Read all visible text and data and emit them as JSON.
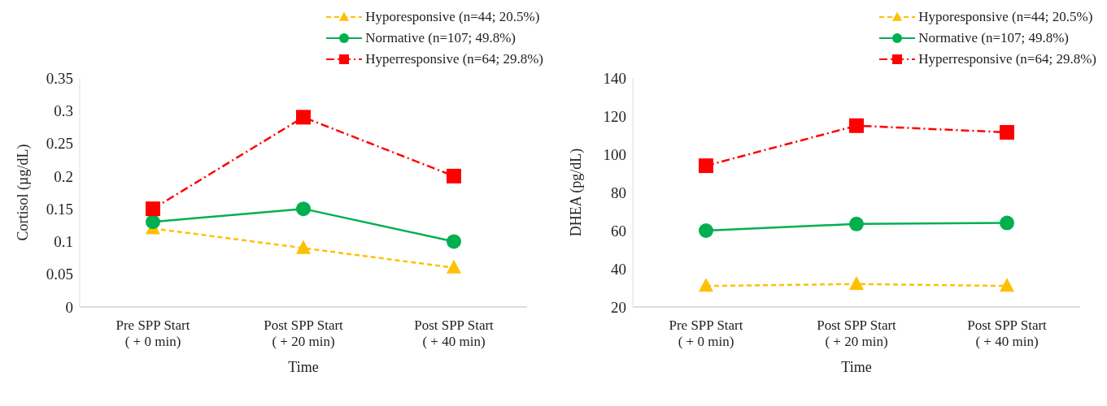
{
  "chart_data": [
    {
      "type": "line",
      "xlabel": "Time",
      "ylabel": "Cortisol (µg/dL)",
      "categories": [
        "Pre SPP Start\n( + 0 min)",
        "Post SPP Start\n( + 20 min)",
        "Post SPP Start\n( + 40 min)"
      ],
      "series": [
        {
          "name": "Hyporesponsive (n=44; 20.5%)",
          "color": "#ffc000",
          "values": [
            0.12,
            0.09,
            0.06
          ],
          "marker": "triangle",
          "line_style": "dashed"
        },
        {
          "name": "Normative (n=107; 49.8%)",
          "color": "#00b050",
          "values": [
            0.13,
            0.15,
            0.1
          ],
          "marker": "circle",
          "line_style": "solid"
        },
        {
          "name": "Hyperresponsive (n=64; 29.8%)",
          "color": "#ff0000",
          "values": [
            0.15,
            0.29,
            0.2
          ],
          "marker": "square",
          "line_style": "dashdot"
        }
      ],
      "ylim": [
        0,
        0.35
      ],
      "yticks": [
        0,
        0.05,
        0.1,
        0.15,
        0.2,
        0.25,
        0.3,
        0.35
      ],
      "grid": false,
      "legend": "top right"
    },
    {
      "type": "line",
      "xlabel": "Time",
      "ylabel": "DHEA (pg/dL)",
      "categories": [
        "Pre SPP Start\n( + 0 min)",
        "Post SPP Start\n( + 20 min)",
        "Post SPP Start\n( + 40 min)"
      ],
      "series": [
        {
          "name": "Hyporesponsive (n=44; 20.5%)",
          "color": "#ffc000",
          "values": [
            31,
            32,
            31
          ],
          "marker": "triangle",
          "line_style": "dashed"
        },
        {
          "name": "Normative (n=107; 49.8%)",
          "color": "#00b050",
          "values": [
            60,
            63.5,
            64
          ],
          "marker": "circle",
          "line_style": "solid"
        },
        {
          "name": "Hyperresponsive (n=64; 29.8%)",
          "color": "#ff0000",
          "values": [
            94,
            115,
            111.5
          ],
          "marker": "square",
          "line_style": "dashdot"
        }
      ],
      "ylim": [
        20,
        140
      ],
      "yticks": [
        20,
        40,
        60,
        80,
        100,
        120,
        140
      ],
      "grid": false,
      "legend": "top right"
    }
  ]
}
